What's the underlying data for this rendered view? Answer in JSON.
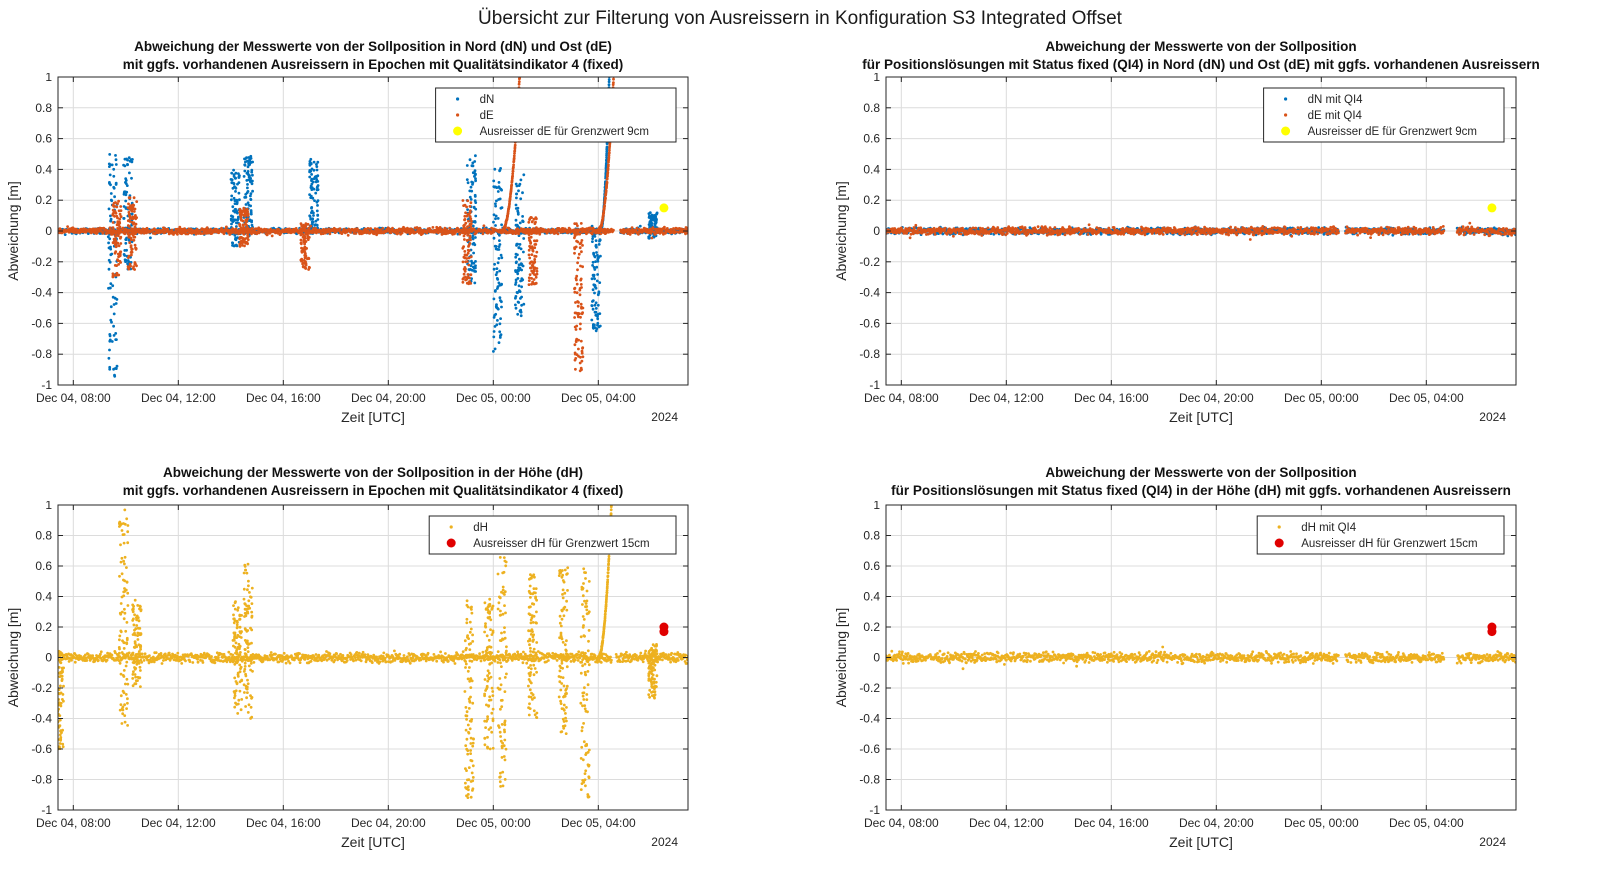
{
  "figure": {
    "title": "Übersicht zur Filterung von Ausreissern in Konfiguration S3 Integrated Offset"
  },
  "colors": {
    "dN": "#0072BD",
    "dE": "#D95319",
    "dH": "#EDB120",
    "outlier_dE": "#FFFF00",
    "outlier_dH": "#E00000"
  },
  "chart_data": [
    {
      "type": "scatter",
      "title_line1": "Abweichung der Messwerte von der Sollposition in Nord (dN) und Ost (dE)",
      "title_line2": "mit ggfs. vorhandenen Ausreissern in Epochen mit Qualitätsindikator 4 (fixed)",
      "xlabel": "Zeit [UTC]",
      "ylabel": "Abweichung [m]",
      "year_label": "2024",
      "xlim": [
        "2024-12-04 07:25",
        "2024-12-05 07:25"
      ],
      "ylim": [
        -1,
        1
      ],
      "x_ticks": [
        "Dec 04, 08:00",
        "Dec 04, 12:00",
        "Dec 04, 16:00",
        "Dec 04, 20:00",
        "Dec 05, 00:00",
        "Dec 05, 04:00"
      ],
      "y_ticks": [
        "1",
        "0.8",
        "0.6",
        "0.4",
        "0.2",
        "0",
        "-0.2",
        "-0.4",
        "-0.6",
        "-0.8",
        "-1"
      ],
      "grid": true,
      "legend_position": "top-right",
      "series": [
        {
          "name": "dN",
          "marker": "dot",
          "color": "#0072BD",
          "baseline_noise": 0.02,
          "spikes": [
            {
              "x": "2024-12-04 09:30",
              "min": -0.95,
              "max": 0.52
            },
            {
              "x": "2024-12-04 10:05",
              "min": -0.25,
              "max": 0.48
            },
            {
              "x": "2024-12-04 14:10",
              "min": -0.1,
              "max": 0.4
            },
            {
              "x": "2024-12-04 14:40",
              "min": -0.05,
              "max": 0.49
            },
            {
              "x": "2024-12-04 17:10",
              "min": -0.02,
              "max": 0.47
            },
            {
              "x": "2024-12-04 23:10",
              "min": -0.35,
              "max": 0.5
            },
            {
              "x": "2024-12-05 00:10",
              "min": -0.8,
              "max": 0.42
            },
            {
              "x": "2024-12-05 01:00",
              "min": -0.55,
              "max": 0.38
            },
            {
              "x": "2024-12-05 03:55",
              "min": -0.65,
              "max": 0.05
            },
            {
              "x": "2024-12-05 06:05",
              "min": -0.05,
              "max": 0.12
            }
          ],
          "drift": {
            "start": "2024-12-05 04:05",
            "end": "2024-12-05 04:25",
            "from": 0.0,
            "to": 1.0
          },
          "gap": [
            "2024-12-05 04:25",
            "2024-12-05 04:50"
          ]
        },
        {
          "name": "dE",
          "marker": "dot",
          "color": "#D95319",
          "baseline_noise": 0.025,
          "spikes": [
            {
              "x": "2024-12-04 09:40",
              "min": -0.3,
              "max": 0.2
            },
            {
              "x": "2024-12-04 10:15",
              "min": -0.25,
              "max": 0.22
            },
            {
              "x": "2024-12-04 14:30",
              "min": -0.1,
              "max": 0.15
            },
            {
              "x": "2024-12-04 16:50",
              "min": -0.25,
              "max": 0.05
            },
            {
              "x": "2024-12-04 23:00",
              "min": -0.35,
              "max": 0.2
            },
            {
              "x": "2024-12-05 01:30",
              "min": -0.35,
              "max": 0.1
            },
            {
              "x": "2024-12-05 03:15",
              "min": -0.92,
              "max": 0.05
            }
          ],
          "drifts": [
            {
              "start": "2024-12-05 00:20",
              "end": "2024-12-05 01:00",
              "from": 0.0,
              "to": 1.0
            },
            {
              "start": "2024-12-05 04:00",
              "end": "2024-12-05 04:35",
              "from": 0.0,
              "to": 1.0
            }
          ],
          "gap": [
            "2024-12-05 04:35",
            "2024-12-05 04:50"
          ]
        },
        {
          "name": "Ausreisser dE für Grenzwert 9cm",
          "marker": "filled-circle",
          "color": "#FFFF00",
          "points": [
            {
              "x": "2024-12-05 06:30",
              "y": 0.15
            }
          ]
        }
      ]
    },
    {
      "type": "scatter",
      "title_line1": "Abweichung der Messwerte von der Sollposition",
      "title_line2": "für Positionslösungen mit Status fixed (QI4) in Nord (dN) und Ost (dE) mit ggfs. vorhandenen Ausreissern",
      "xlabel": "Zeit [UTC]",
      "ylabel": "Abweichung [m]",
      "year_label": "2024",
      "xlim": [
        "2024-12-04 07:25",
        "2024-12-05 07:25"
      ],
      "ylim": [
        -1,
        1
      ],
      "x_ticks": [
        "Dec 04, 08:00",
        "Dec 04, 12:00",
        "Dec 04, 16:00",
        "Dec 04, 20:00",
        "Dec 05, 00:00",
        "Dec 05, 04:00"
      ],
      "y_ticks": [
        "1",
        "0.8",
        "0.6",
        "0.4",
        "0.2",
        "0",
        "-0.2",
        "-0.4",
        "-0.6",
        "-0.8",
        "-1"
      ],
      "grid": true,
      "legend_position": "top-right",
      "series": [
        {
          "name": "dN mit QI4",
          "marker": "dot",
          "color": "#0072BD",
          "baseline_noise": 0.025,
          "gaps": [
            [
              "2024-12-05 00:40",
              "2024-12-05 00:55"
            ],
            [
              "2024-12-05 04:40",
              "2024-12-05 05:10"
            ]
          ]
        },
        {
          "name": "dE mit QI4",
          "marker": "dot",
          "color": "#D95319",
          "baseline_noise": 0.03,
          "gaps": [
            [
              "2024-12-05 00:40",
              "2024-12-05 00:55"
            ],
            [
              "2024-12-05 04:40",
              "2024-12-05 05:10"
            ]
          ]
        },
        {
          "name": "Ausreisser dE für Grenzwert 9cm",
          "marker": "filled-circle",
          "color": "#FFFF00",
          "points": [
            {
              "x": "2024-12-05 06:30",
              "y": 0.15
            }
          ]
        }
      ]
    },
    {
      "type": "scatter",
      "title_line1": "Abweichung der Messwerte von der Sollposition in der Höhe (dH)",
      "title_line2": "mit ggfs. vorhandenen Ausreissern in Epochen mit Qualitätsindikator 4 (fixed)",
      "xlabel": "Zeit [UTC]",
      "ylabel": "Abweichung [m]",
      "year_label": "2024",
      "xlim": [
        "2024-12-04 07:25",
        "2024-12-05 07:25"
      ],
      "ylim": [
        -1,
        1
      ],
      "x_ticks": [
        "Dec 04, 08:00",
        "Dec 04, 12:00",
        "Dec 04, 16:00",
        "Dec 04, 20:00",
        "Dec 05, 00:00",
        "Dec 05, 04:00"
      ],
      "y_ticks": [
        "1",
        "0.8",
        "0.6",
        "0.4",
        "0.2",
        "0",
        "-0.2",
        "-0.4",
        "-0.6",
        "-0.8",
        "-1"
      ],
      "grid": true,
      "legend_position": "top-right",
      "series": [
        {
          "name": "dH",
          "marker": "dot",
          "color": "#EDB120",
          "baseline_noise": 0.04,
          "spikes": [
            {
              "x": "2024-12-04 07:28",
              "min": -0.6,
              "max": 0.05
            },
            {
              "x": "2024-12-04 09:55",
              "min": -0.45,
              "max": 1.0
            },
            {
              "x": "2024-12-04 10:25",
              "min": -0.2,
              "max": 0.4
            },
            {
              "x": "2024-12-04 14:15",
              "min": -0.4,
              "max": 0.38
            },
            {
              "x": "2024-12-04 14:40",
              "min": -0.4,
              "max": 0.62
            },
            {
              "x": "2024-12-04 23:05",
              "min": -0.92,
              "max": 0.38
            },
            {
              "x": "2024-12-04 23:50",
              "min": -0.6,
              "max": 0.4
            },
            {
              "x": "2024-12-05 00:20",
              "min": -0.85,
              "max": 0.85
            },
            {
              "x": "2024-12-05 01:30",
              "min": -0.4,
              "max": 0.6
            },
            {
              "x": "2024-12-05 02:40",
              "min": -0.5,
              "max": 0.6
            },
            {
              "x": "2024-12-05 03:30",
              "min": -0.92,
              "max": 0.6
            },
            {
              "x": "2024-12-05 06:05",
              "min": -0.27,
              "max": 0.1
            }
          ],
          "drift": {
            "start": "2024-12-05 04:00",
            "end": "2024-12-05 04:30",
            "from": 0.0,
            "to": 1.0
          },
          "gap": [
            "2024-12-05 04:30",
            "2024-12-05 04:40"
          ]
        },
        {
          "name": "Ausreisser dH für Grenzwert 15cm",
          "marker": "filled-circle",
          "color": "#E00000",
          "points": [
            {
              "x": "2024-12-05 06:30",
              "y": 0.2
            },
            {
              "x": "2024-12-05 06:30",
              "y": 0.17
            }
          ]
        }
      ]
    },
    {
      "type": "scatter",
      "title_line1": "Abweichung der Messwerte von der Sollposition",
      "title_line2": "für Positionslösungen mit Status fixed (QI4) in der Höhe (dH) mit ggfs. vorhandenen Ausreissern",
      "xlabel": "Zeit [UTC]",
      "ylabel": "Abweichung [m]",
      "year_label": "2024",
      "xlim": [
        "2024-12-04 07:25",
        "2024-12-05 07:25"
      ],
      "ylim": [
        -1,
        1
      ],
      "x_ticks": [
        "Dec 04, 08:00",
        "Dec 04, 12:00",
        "Dec 04, 16:00",
        "Dec 04, 20:00",
        "Dec 05, 00:00",
        "Dec 05, 04:00"
      ],
      "y_ticks": [
        "1",
        "0.8",
        "0.6",
        "0.4",
        "0.2",
        "0",
        "-0.2",
        "-0.4",
        "-0.6",
        "-0.8",
        "-1"
      ],
      "grid": true,
      "legend_position": "top-right",
      "series": [
        {
          "name": "dH mit QI4",
          "marker": "dot",
          "color": "#EDB120",
          "baseline_noise": 0.04,
          "gaps": [
            [
              "2024-12-05 00:40",
              "2024-12-05 00:55"
            ],
            [
              "2024-12-05 04:40",
              "2024-12-05 05:10"
            ]
          ]
        },
        {
          "name": "Ausreisser dH für Grenzwert 15cm",
          "marker": "filled-circle",
          "color": "#E00000",
          "points": [
            {
              "x": "2024-12-05 06:30",
              "y": 0.2
            },
            {
              "x": "2024-12-05 06:30",
              "y": 0.17
            }
          ]
        }
      ]
    }
  ]
}
